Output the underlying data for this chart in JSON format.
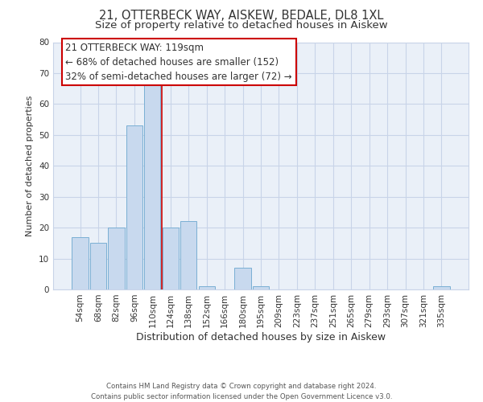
{
  "title": "21, OTTERBECK WAY, AISKEW, BEDALE, DL8 1XL",
  "subtitle": "Size of property relative to detached houses in Aiskew",
  "xlabel": "Distribution of detached houses by size in Aiskew",
  "ylabel": "Number of detached properties",
  "bar_labels": [
    "54sqm",
    "68sqm",
    "82sqm",
    "96sqm",
    "110sqm",
    "124sqm",
    "138sqm",
    "152sqm",
    "166sqm",
    "180sqm",
    "195sqm",
    "209sqm",
    "223sqm",
    "237sqm",
    "251sqm",
    "265sqm",
    "279sqm",
    "293sqm",
    "307sqm",
    "321sqm",
    "335sqm"
  ],
  "bar_values": [
    17,
    15,
    20,
    53,
    67,
    20,
    22,
    1,
    0,
    7,
    1,
    0,
    0,
    0,
    0,
    0,
    0,
    0,
    0,
    0,
    1
  ],
  "bar_color": "#c8d9ee",
  "bar_edge_color": "#7aafd4",
  "plot_bg_color": "#eaf0f8",
  "ylim": [
    0,
    80
  ],
  "yticks": [
    0,
    10,
    20,
    30,
    40,
    50,
    60,
    70,
    80
  ],
  "property_line_x": 4.5,
  "property_line_color": "#cc0000",
  "annotation_line1": "21 OTTERBECK WAY: 119sqm",
  "annotation_line2": "← 68% of detached houses are smaller (152)",
  "annotation_line3": "32% of semi-detached houses are larger (72) →",
  "footer_line1": "Contains HM Land Registry data © Crown copyright and database right 2024.",
  "footer_line2": "Contains public sector information licensed under the Open Government Licence v3.0.",
  "background_color": "#ffffff",
  "grid_color": "#c8d4e8",
  "title_fontsize": 10.5,
  "subtitle_fontsize": 9.5,
  "annotation_fontsize": 8.5,
  "ylabel_fontsize": 8,
  "xlabel_fontsize": 9,
  "tick_fontsize": 7.5
}
